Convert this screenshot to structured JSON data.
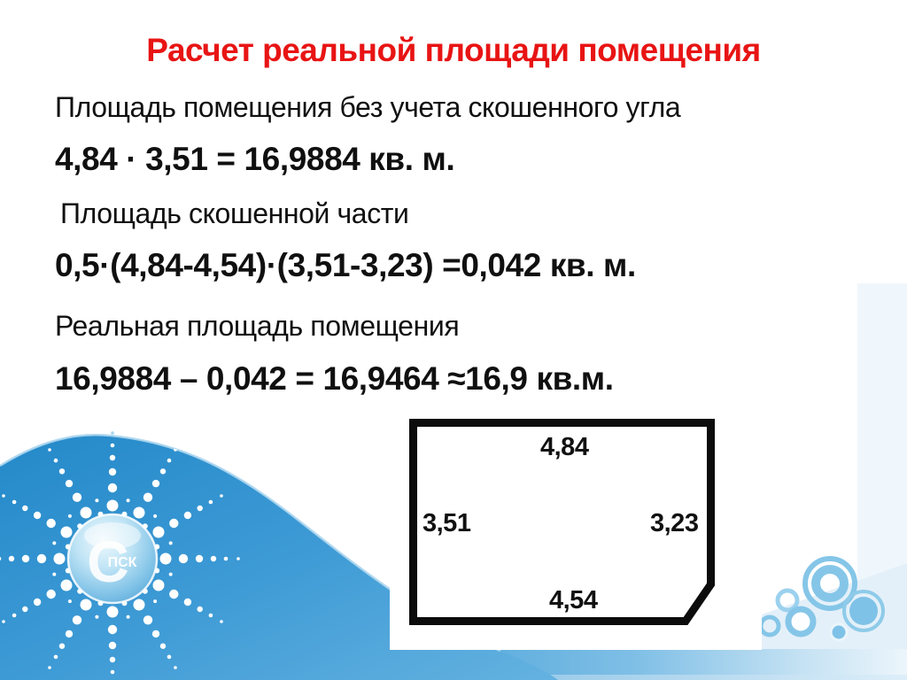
{
  "slide": {
    "title": {
      "text": "Расчет реальной площади помещения"
    },
    "lines": [
      {
        "text": "Площадь помещения без учета скошенного угла"
      },
      {
        "text": "4,84 · 3,51 = 16,9884 кв. м."
      },
      {
        "text": "Площадь скошенной части"
      },
      {
        "text": "0,5·(4,84-4,54)·(3,51-3,23) =0,042 кв. м."
      },
      {
        "text": "Реальная площадь помещения"
      },
      {
        "text": "16,9884 – 0,042 = 16,9464 ≈16,9 кв.м."
      }
    ],
    "diagram": {
      "top_width": "4,84",
      "left_height": "3,51",
      "right_height": "3,23",
      "bottom_width": "4,54"
    },
    "logo": {
      "big_letter": "С",
      "small_letters": "ПСК"
    },
    "colors": {
      "title_red": "#e81414",
      "text_black": "#101010",
      "wave_blue": "#3d9ad5",
      "decor_blue": "#85c6e8"
    }
  }
}
